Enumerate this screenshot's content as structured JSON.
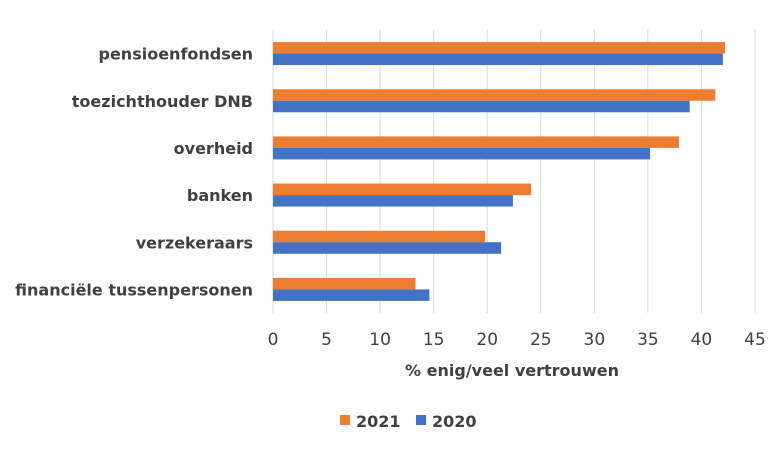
{
  "chart_data": {
    "type": "bar",
    "orientation": "horizontal",
    "categories": [
      "pensioenfondsen",
      "toezichthouder DNB",
      "overheid",
      "banken",
      "verzekeraars",
      "financiële tussenpersonen"
    ],
    "series": [
      {
        "name": "2021",
        "color": "#ED7D31",
        "values": [
          42.2,
          41.3,
          37.9,
          24.1,
          19.8,
          13.3
        ]
      },
      {
        "name": "2020",
        "color": "#4472C4",
        "values": [
          42.0,
          38.9,
          35.2,
          22.4,
          21.3,
          14.6
        ]
      }
    ],
    "xlabel": "% enig/veel vertrouwen",
    "xlim": [
      0,
      45
    ],
    "xticks": [
      "0",
      "5",
      "10",
      "15",
      "20",
      "25",
      "30",
      "35",
      "40",
      "45"
    ],
    "grid": true,
    "legend_position": "bottom"
  }
}
